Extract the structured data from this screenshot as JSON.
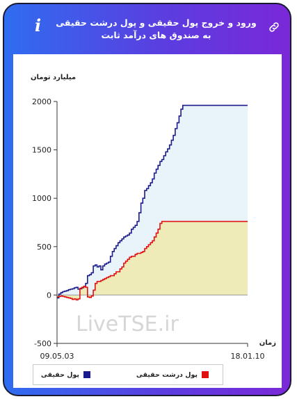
{
  "header": {
    "title": "ورود و خروج پول حقیقی و پول درشت حقیقی به صندوق های درآمد ثابت",
    "info_glyph": "i",
    "link_icon": "link-icon"
  },
  "watermark": "LiveTSE.ir",
  "chart_data": {
    "type": "line",
    "title": "ورود و خروج پول حقیقی و پول درشت حقیقی به صندوق های درآمد ثابت",
    "ylabel": "میلیارد تومان",
    "xlabel": "زمان",
    "x_tick_labels": [
      "09.05.03",
      "18.01.10"
    ],
    "ylim": [
      -500,
      2000
    ],
    "yticks": [
      2000,
      1500,
      1000,
      500,
      0,
      -500
    ],
    "grid": false,
    "legend_position": "bottom",
    "x": [
      0,
      1,
      2,
      3,
      4,
      5,
      6,
      7,
      8,
      9,
      10,
      11,
      12,
      13,
      14,
      15,
      16,
      17,
      18,
      19,
      20,
      21,
      22,
      23,
      24,
      25,
      26,
      27,
      28,
      29,
      30,
      31,
      32,
      33,
      34,
      35,
      36,
      37,
      38,
      39,
      40,
      41,
      42,
      43,
      44,
      45,
      46,
      47,
      48,
      49,
      50,
      51,
      52,
      53,
      54,
      55,
      56,
      57,
      58,
      59,
      60,
      61,
      62,
      63,
      64,
      65,
      66,
      67,
      68,
      69,
      70,
      71,
      72,
      73,
      74,
      75,
      76,
      77,
      78,
      79,
      80,
      81,
      82,
      83,
      84,
      85,
      86,
      87,
      88,
      89,
      90,
      91,
      92,
      93,
      94,
      95,
      96,
      97,
      98,
      99,
      100
    ],
    "series": [
      {
        "name": "پول حقیقی",
        "color": "#1a1a8c",
        "fill": "#e8f3fa",
        "values": [
          -30,
          10,
          25,
          35,
          40,
          45,
          55,
          60,
          65,
          75,
          80,
          60,
          65,
          75,
          90,
          120,
          200,
          210,
          230,
          300,
          310,
          290,
          300,
          260,
          300,
          320,
          330,
          340,
          400,
          450,
          480,
          510,
          540,
          560,
          580,
          600,
          610,
          620,
          640,
          680,
          700,
          720,
          760,
          850,
          950,
          1000,
          1080,
          1100,
          1130,
          1160,
          1200,
          1260,
          1300,
          1340,
          1380,
          1400,
          1440,
          1480,
          1510,
          1550,
          1600,
          1650,
          1720,
          1780,
          1850,
          1920,
          1960,
          1960,
          1960,
          1960,
          1960,
          1960,
          1960,
          1960,
          1960,
          1960,
          1960,
          1960,
          1960,
          1960,
          1960,
          1960,
          1960,
          1960,
          1960,
          1960,
          1960,
          1960,
          1960,
          1960,
          1960,
          1960,
          1960,
          1960,
          1960,
          1960,
          1960,
          1960,
          1960,
          1960,
          1960
        ]
      },
      {
        "name": "پول درشت حقیقی",
        "color": "#e01010",
        "fill": "#efebb8",
        "values": [
          -20,
          -15,
          -10,
          -15,
          -20,
          -25,
          -30,
          -35,
          -45,
          -40,
          -50,
          -40,
          70,
          80,
          90,
          80,
          -20,
          -25,
          -10,
          50,
          120,
          140,
          140,
          150,
          160,
          170,
          180,
          190,
          200,
          200,
          220,
          240,
          240,
          270,
          290,
          330,
          350,
          370,
          390,
          400,
          400,
          420,
          430,
          430,
          440,
          450,
          480,
          500,
          520,
          540,
          560,
          600,
          640,
          680,
          740,
          760,
          760,
          760,
          760,
          760,
          760,
          760,
          760,
          760,
          760,
          760,
          760,
          760,
          760,
          760,
          760,
          760,
          760,
          760,
          760,
          760,
          760,
          760,
          760,
          760,
          760,
          760,
          760,
          760,
          760,
          760,
          760,
          760,
          760,
          760,
          760,
          760,
          760,
          760,
          760,
          760,
          760,
          760,
          760,
          760,
          760
        ]
      }
    ]
  }
}
